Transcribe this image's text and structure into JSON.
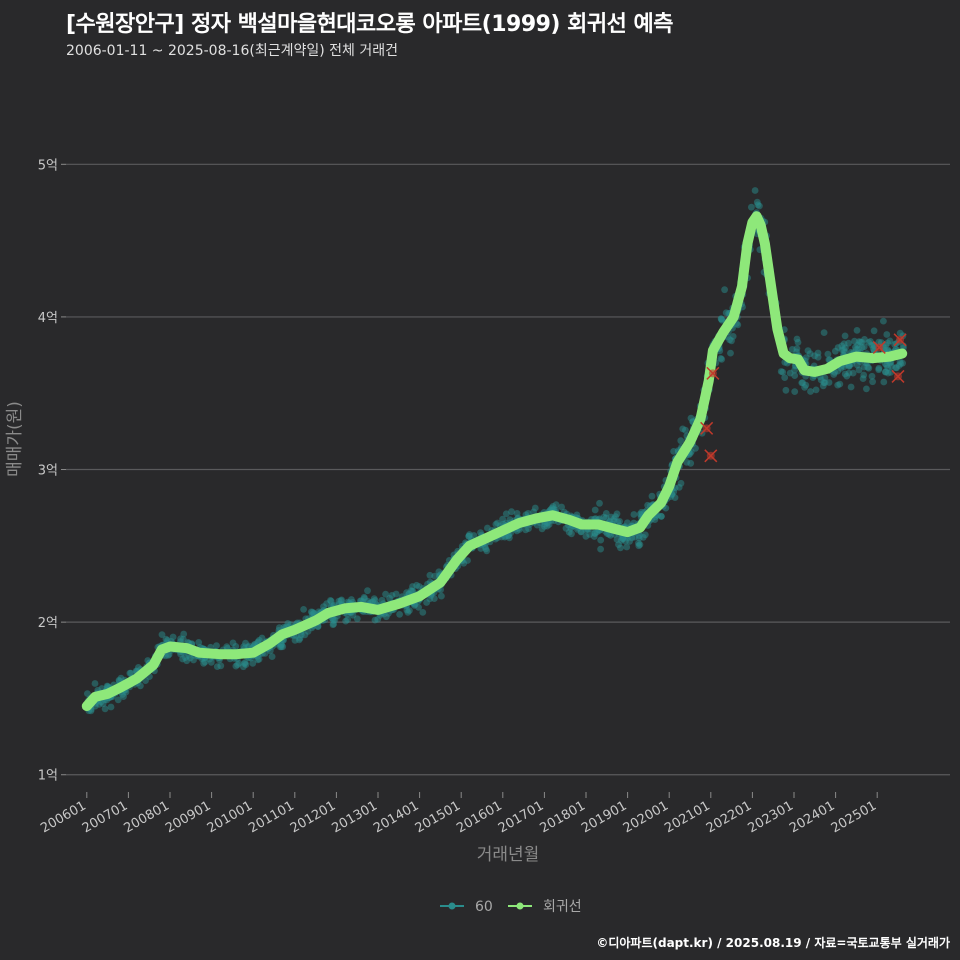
{
  "title": "[수원장안구] 정자 백설마을현대코오롱 아파트(1999) 회귀선 예측",
  "subtitle": "2006-01-11 ~ 2025-08-16(최근계약일) 전체 거래건",
  "footer": "©디아파트(dapt.kr) / 2025.08.19 / 자료=국토교통부 실거래가",
  "colors": {
    "background": "#29292b",
    "grid": "#5a5a5c",
    "points": "#2a8c8c",
    "regression": "#8ee87a",
    "cancelled": "#c0392b"
  },
  "chart_data": {
    "type": "scatter",
    "xlabel": "거래년월",
    "ylabel": "매매가(원)",
    "x_range": [
      2005.5,
      2026.75
    ],
    "ylim": [
      0.9,
      5.5
    ],
    "y_unit": "억",
    "y_ticks": [
      {
        "value": 1,
        "label": "1억"
      },
      {
        "value": 2,
        "label": "2억"
      },
      {
        "value": 3,
        "label": "3억"
      },
      {
        "value": 4,
        "label": "4억"
      },
      {
        "value": 5,
        "label": "5억"
      }
    ],
    "x_ticks": [
      {
        "value": 2006.0,
        "label": "200601"
      },
      {
        "value": 2007.0,
        "label": "200701"
      },
      {
        "value": 2008.0,
        "label": "200801"
      },
      {
        "value": 2009.0,
        "label": "200901"
      },
      {
        "value": 2010.0,
        "label": "201001"
      },
      {
        "value": 2011.0,
        "label": "201101"
      },
      {
        "value": 2012.0,
        "label": "201201"
      },
      {
        "value": 2013.0,
        "label": "201301"
      },
      {
        "value": 2014.0,
        "label": "201401"
      },
      {
        "value": 2015.0,
        "label": "201501"
      },
      {
        "value": 2016.0,
        "label": "201601"
      },
      {
        "value": 2017.0,
        "label": "201701"
      },
      {
        "value": 2018.0,
        "label": "201801"
      },
      {
        "value": 2019.0,
        "label": "201901"
      },
      {
        "value": 2020.0,
        "label": "202001"
      },
      {
        "value": 2021.0,
        "label": "202101"
      },
      {
        "value": 2022.0,
        "label": "202201"
      },
      {
        "value": 2023.0,
        "label": "202301"
      },
      {
        "value": 2024.0,
        "label": "202401"
      },
      {
        "value": 2025.0,
        "label": "202501"
      }
    ],
    "legend": {
      "placement": "bottom",
      "entries": [
        {
          "name": "60",
          "kind": "points"
        },
        {
          "name": "회귀선",
          "kind": "line"
        }
      ]
    },
    "regression": [
      [
        2006.0,
        1.45
      ],
      [
        2006.2,
        1.51
      ],
      [
        2006.5,
        1.53
      ],
      [
        2006.8,
        1.57
      ],
      [
        2007.2,
        1.63
      ],
      [
        2007.6,
        1.72
      ],
      [
        2007.8,
        1.82
      ],
      [
        2008.0,
        1.84
      ],
      [
        2008.4,
        1.83
      ],
      [
        2008.7,
        1.8
      ],
      [
        2009.2,
        1.79
      ],
      [
        2009.6,
        1.79
      ],
      [
        2010.0,
        1.8
      ],
      [
        2010.4,
        1.86
      ],
      [
        2010.7,
        1.92
      ],
      [
        2011.0,
        1.95
      ],
      [
        2011.5,
        2.01
      ],
      [
        2011.8,
        2.06
      ],
      [
        2012.2,
        2.09
      ],
      [
        2012.6,
        2.1
      ],
      [
        2013.0,
        2.08
      ],
      [
        2013.5,
        2.12
      ],
      [
        2014.0,
        2.17
      ],
      [
        2014.5,
        2.26
      ],
      [
        2014.9,
        2.41
      ],
      [
        2015.2,
        2.5
      ],
      [
        2015.6,
        2.55
      ],
      [
        2016.0,
        2.6
      ],
      [
        2016.4,
        2.65
      ],
      [
        2016.8,
        2.68
      ],
      [
        2017.2,
        2.7
      ],
      [
        2017.6,
        2.67
      ],
      [
        2017.9,
        2.64
      ],
      [
        2018.3,
        2.64
      ],
      [
        2018.7,
        2.61
      ],
      [
        2019.0,
        2.59
      ],
      [
        2019.3,
        2.62
      ],
      [
        2019.5,
        2.7
      ],
      [
        2019.8,
        2.78
      ],
      [
        2020.0,
        2.89
      ],
      [
        2020.2,
        3.05
      ],
      [
        2020.5,
        3.18
      ],
      [
        2020.75,
        3.33
      ],
      [
        2020.95,
        3.58
      ],
      [
        2021.05,
        3.78
      ],
      [
        2021.3,
        3.9
      ],
      [
        2021.55,
        4.0
      ],
      [
        2021.75,
        4.2
      ],
      [
        2021.88,
        4.48
      ],
      [
        2022.0,
        4.62
      ],
      [
        2022.1,
        4.66
      ],
      [
        2022.2,
        4.6
      ],
      [
        2022.3,
        4.48
      ],
      [
        2022.45,
        4.2
      ],
      [
        2022.6,
        3.92
      ],
      [
        2022.75,
        3.76
      ],
      [
        2022.9,
        3.73
      ],
      [
        2023.1,
        3.72
      ],
      [
        2023.25,
        3.65
      ],
      [
        2023.5,
        3.64
      ],
      [
        2023.8,
        3.66
      ],
      [
        2024.1,
        3.71
      ],
      [
        2024.5,
        3.74
      ],
      [
        2024.9,
        3.73
      ],
      [
        2025.3,
        3.74
      ],
      [
        2025.6,
        3.76
      ]
    ],
    "cancelled_deals": [
      [
        2020.9,
        3.27
      ],
      [
        2021.0,
        3.09
      ],
      [
        2021.05,
        3.63
      ],
      [
        2025.05,
        3.8
      ],
      [
        2025.5,
        3.61
      ],
      [
        2025.55,
        3.85
      ]
    ]
  }
}
